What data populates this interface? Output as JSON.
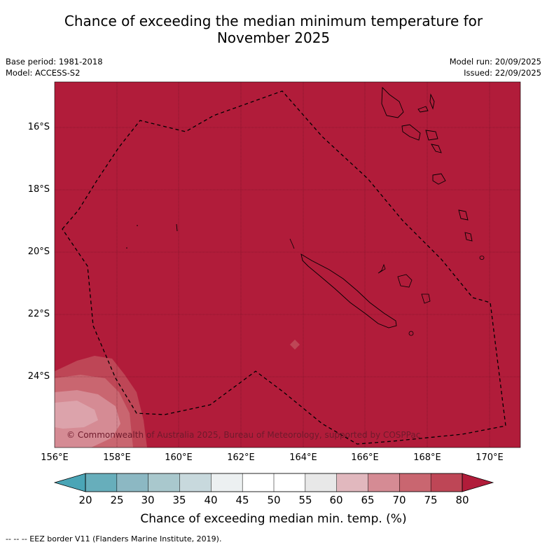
{
  "title_line1": "Chance of exceeding the median minimum temperature for",
  "title_line2": "November 2025",
  "meta": {
    "base_period": "Base period: 1981-2018",
    "model": "Model: ACCESS-S2",
    "model_run": "Model run: 20/09/2025",
    "issued": "Issued: 22/09/2025"
  },
  "map": {
    "lat_labels": [
      "16°S",
      "18°S",
      "20°S",
      "22°S",
      "24°S"
    ],
    "lon_labels": [
      "156°E",
      "158°E",
      "160°E",
      "162°E",
      "164°E",
      "166°E",
      "168°E",
      "170°E"
    ],
    "copyright": "© Commonwealth of Australia 2025, Bureau of Meteorology, supported by COSPPac",
    "background_color": "#b11c3a"
  },
  "colorbar": {
    "ticks": [
      "20",
      "25",
      "30",
      "35",
      "40",
      "45",
      "50",
      "55",
      "60",
      "65",
      "70",
      "75",
      "80"
    ],
    "colors": [
      "#67aebb",
      "#8cb8c3",
      "#a9c8cd",
      "#c8d9dd",
      "#ecf0f1",
      "#ffffff",
      "#ffffff",
      "#e8e8e8",
      "#e1b8be",
      "#d58b94",
      "#c96670",
      "#be4656"
    ],
    "under_color": "#4aa5b6",
    "over_color": "#b11c3a",
    "label": "Chance of exceeding median min. temp. (%)"
  },
  "footer": "--  --  -- EEZ border V11 (Flanders Marine Institute, 2019)."
}
